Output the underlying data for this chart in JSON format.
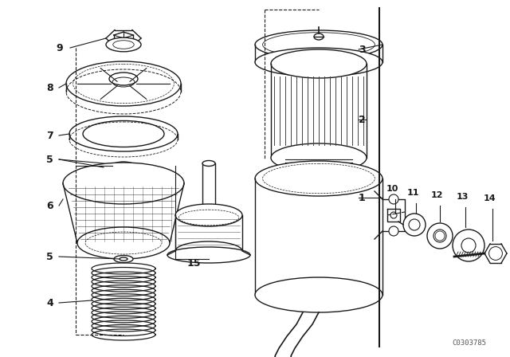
{
  "bg_color": "#ffffff",
  "line_color": "#1a1a1a",
  "watermark": "C0303785",
  "fig_w": 6.4,
  "fig_h": 4.48,
  "dpi": 100
}
